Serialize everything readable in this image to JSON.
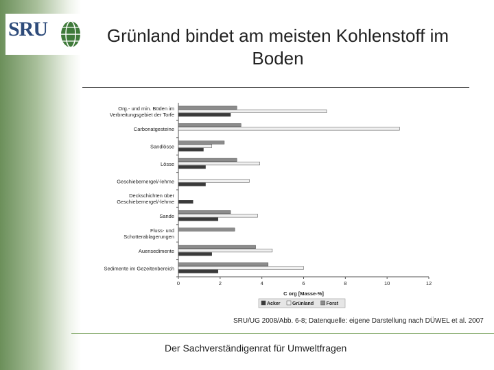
{
  "logo": {
    "text": "SRU"
  },
  "slide": {
    "title": "Grünland bindet am meisten Kohlenstoff im Boden",
    "source": "SRU/UG 2008/Abb. 6-8; Datenquelle: eigene Darstellung nach DÜWEL et al. 2007",
    "footer": "Der Sachverständigenrat für Umweltfragen"
  },
  "chart_data": {
    "type": "bar",
    "orientation": "horizontal",
    "title": "",
    "xlabel": "C org [Masse-%]",
    "ylabel": "",
    "xlim": [
      0,
      12
    ],
    "xticks": [
      0,
      2,
      4,
      6,
      8,
      10,
      12
    ],
    "grid": false,
    "legend_position": "bottom",
    "categories": [
      "Org.- und min. Böden im Verbreitungsgebiet der Torfe",
      "Carbonatgesteine",
      "Sandlösse",
      "Lösse",
      "Geschiebemergel/-lehme",
      "Deckschichten über Geschiebemergel/-lehme",
      "Sande",
      "Fluss- und Schotterablagerungen",
      "Auensedimente",
      "Sedimente im Gezeitenbereich"
    ],
    "category_lines": [
      [
        "Org.- und min. Böden im",
        "Verbreitungsgebiet der Torfe"
      ],
      [
        "Carbonatgesteine"
      ],
      [
        "Sandlösse"
      ],
      [
        "Lösse"
      ],
      [
        "Geschiebemergel/-lehme"
      ],
      [
        "Deckschichten über",
        "Geschiebemergel/-lehme"
      ],
      [
        "Sande"
      ],
      [
        "Fluss- und",
        "Schotterablagerungen"
      ],
      [
        "Auensedimente"
      ],
      [
        "Sedimente im Gezeitenbereich"
      ]
    ],
    "series": [
      {
        "name": "Forst",
        "color": "#8c8c8c",
        "values": [
          2.8,
          3.0,
          2.2,
          2.8,
          null,
          null,
          2.5,
          2.7,
          3.7,
          4.3
        ]
      },
      {
        "name": "Grünland",
        "color": "#f0f0f0",
        "values": [
          7.1,
          10.6,
          1.6,
          3.9,
          3.4,
          null,
          3.8,
          null,
          4.5,
          6.0
        ]
      },
      {
        "name": "Acker",
        "color": "#3a3a3a",
        "values": [
          2.5,
          null,
          1.2,
          1.3,
          1.3,
          0.7,
          1.9,
          null,
          1.6,
          1.9
        ]
      }
    ],
    "legend_order": [
      "Acker",
      "Grünland",
      "Forst"
    ]
  }
}
